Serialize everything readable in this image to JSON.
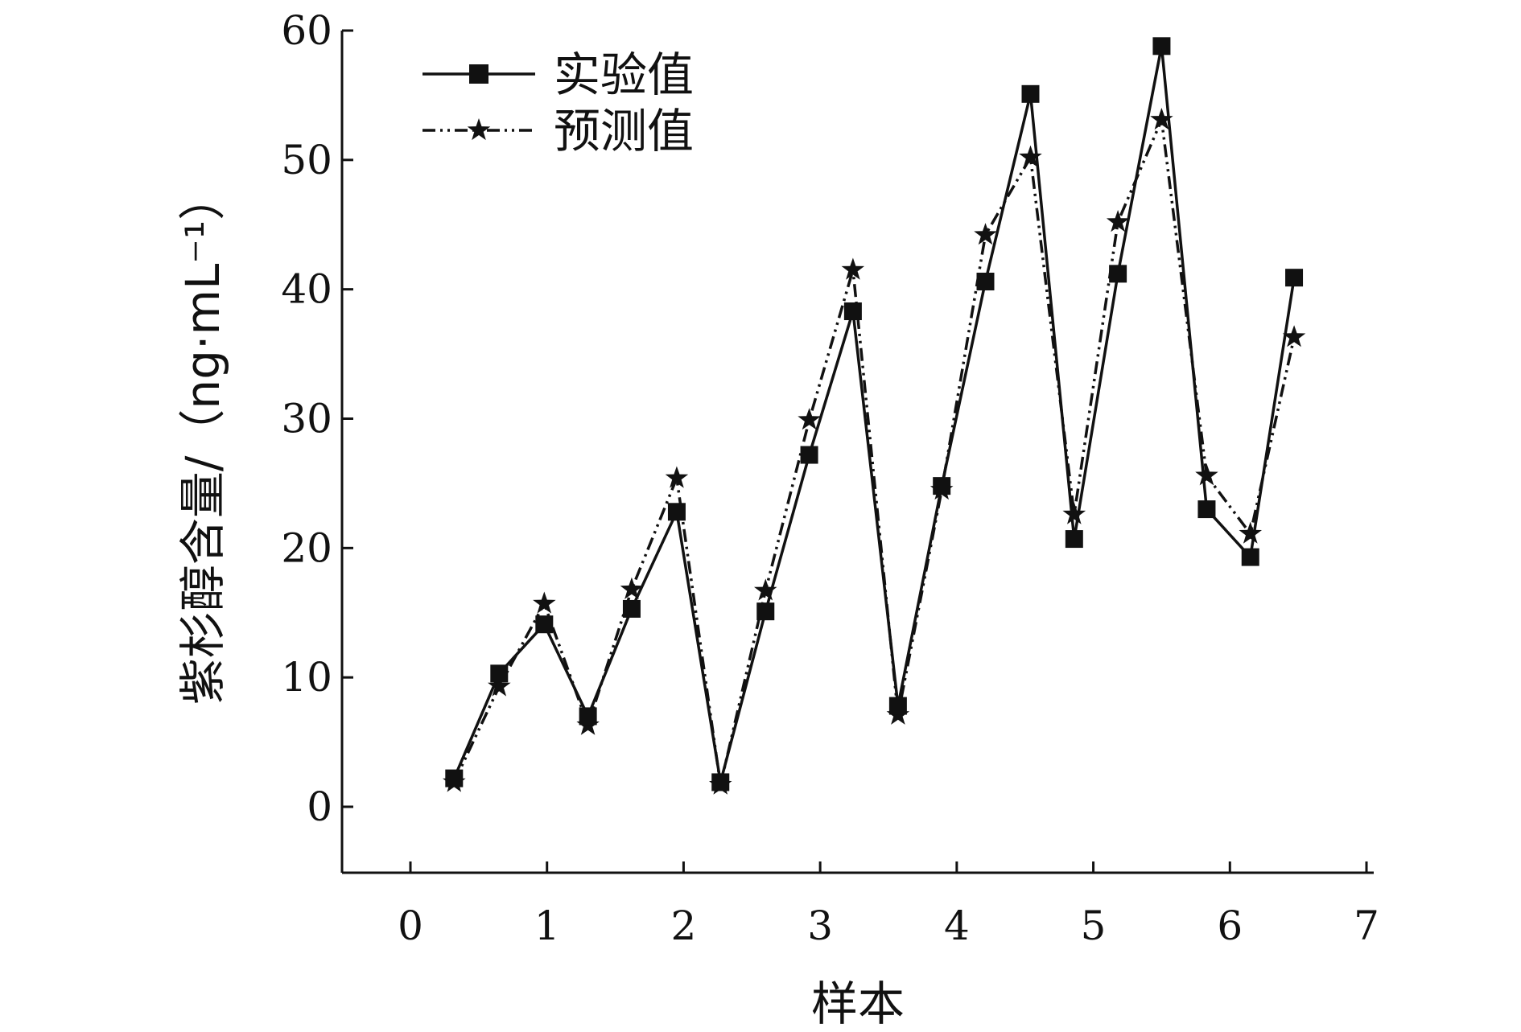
{
  "chart_data": {
    "type": "line",
    "xlabel": "样本",
    "ylabel": "紫杉醇含量/（ng·mL⁻¹）",
    "xlim": [
      0,
      7
    ],
    "ylim": [
      0,
      60
    ],
    "x_ticks": [
      "0",
      "1",
      "2",
      "3",
      "4",
      "5",
      "6",
      "7"
    ],
    "y_ticks": [
      "0",
      "10",
      "20",
      "30",
      "40",
      "50",
      "60"
    ],
    "grid": false,
    "legend_position": "top-left",
    "series": [
      {
        "name": "实验值",
        "marker": "square",
        "line_style": "solid",
        "color": "#111111",
        "x": [
          0.32,
          0.65,
          0.98,
          1.3,
          1.62,
          1.95,
          2.27,
          2.6,
          2.92,
          3.24,
          3.57,
          3.89,
          4.21,
          4.54,
          4.86,
          5.18,
          5.5,
          5.83,
          6.15,
          6.47
        ],
        "values": [
          2.2,
          10.3,
          14.1,
          7.0,
          15.3,
          22.8,
          1.9,
          15.1,
          27.2,
          38.3,
          7.8,
          24.8,
          40.6,
          55.1,
          20.7,
          41.2,
          58.8,
          23.0,
          19.3,
          40.9
        ]
      },
      {
        "name": "预测值",
        "marker": "star",
        "line_style": "dash-dot",
        "color": "#111111",
        "x": [
          0.32,
          0.65,
          0.98,
          1.3,
          1.62,
          1.95,
          2.27,
          2.6,
          2.92,
          3.24,
          3.57,
          3.89,
          4.21,
          4.54,
          4.86,
          5.18,
          5.5,
          5.83,
          6.15,
          6.47
        ],
        "values": [
          1.9,
          9.3,
          15.7,
          6.3,
          16.8,
          25.4,
          1.7,
          16.7,
          29.9,
          41.5,
          7.1,
          24.5,
          44.2,
          50.2,
          22.6,
          45.2,
          53.1,
          25.6,
          21.1,
          36.3
        ]
      }
    ]
  }
}
